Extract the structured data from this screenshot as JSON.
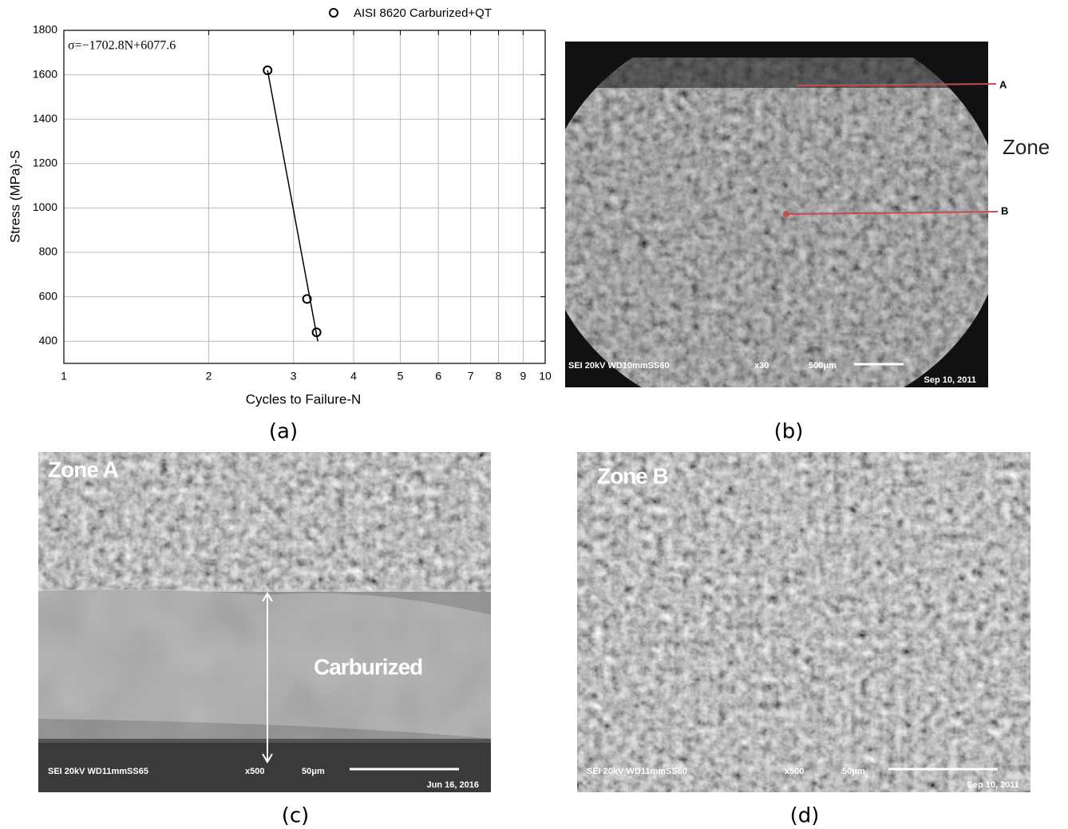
{
  "chart_data": {
    "type": "scatter",
    "series": [
      {
        "name": "AISI 8620 Carburized+QT",
        "color": "#000000",
        "marker": "circle",
        "x": [
          2.65,
          3.2,
          3.35
        ],
        "values": [
          1620,
          590,
          440
        ]
      },
      {
        "color": "#000000",
        "style": "line",
        "x": [
          2.65,
          3.37
        ],
        "values": [
          1620,
          400
        ]
      }
    ],
    "annotation": "σ=−1702.8N+6077.6",
    "x_label": "Cycles to Failure-N",
    "y_label": "Stress (MPa)-S",
    "xlim": [
      1,
      10
    ],
    "xticks": [
      1,
      2,
      3,
      4,
      5,
      6,
      7,
      8,
      9,
      10
    ],
    "xscale": "log",
    "ylim": [
      300,
      1800
    ],
    "yticks": [
      400,
      600,
      800,
      1000,
      1200,
      1400,
      1600,
      1800
    ],
    "grid": true,
    "legend": "top"
  },
  "captions": [
    "(a)",
    "(b)",
    "(c)",
    "(d)"
  ],
  "panel_b": {
    "side_text": "Zone",
    "labels": [
      "A",
      "B"
    ],
    "info": [
      "SEI  20kV   WD10mmSS60",
      "x30",
      "500μm",
      "Sep 10, 2011"
    ]
  },
  "panel_c": {
    "zone": "Zone A",
    "label": "Carburized",
    "info": [
      "SEI  20kV   WD11mmSS65",
      "x500",
      "50μm",
      "Jun 16, 2016"
    ]
  },
  "panel_d": {
    "zone": "Zone B",
    "info": [
      "SEI  20kV   WD11mmSS60",
      "x500",
      "50μm",
      "Sep 10, 2011"
    ]
  }
}
